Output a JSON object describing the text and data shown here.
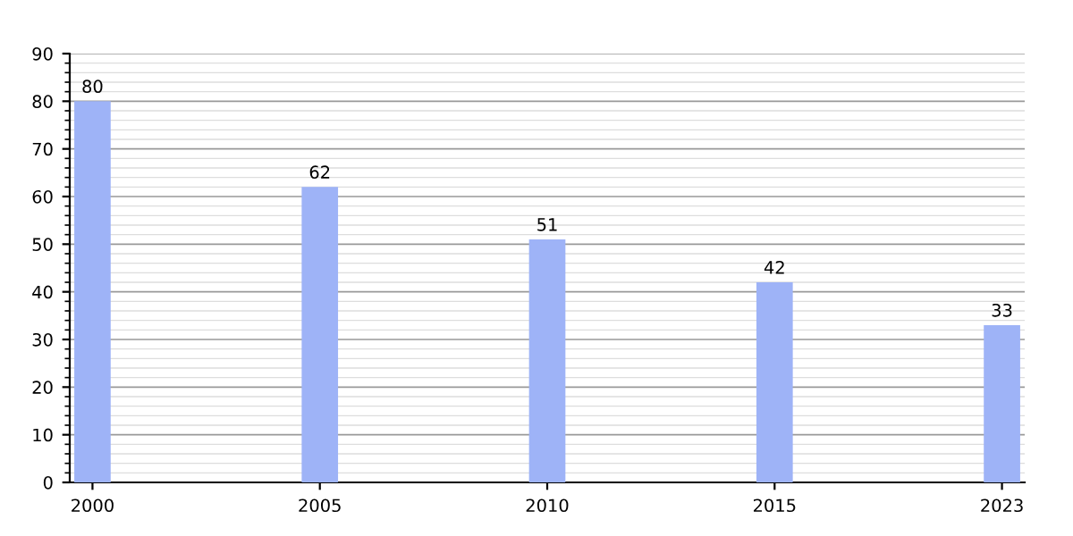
{
  "chart_data": {
    "type": "bar",
    "categories": [
      "2000",
      "2005",
      "2010",
      "2015",
      "2023"
    ],
    "values": [
      80,
      62,
      51,
      42,
      33
    ],
    "color": "#9eb3f7",
    "ylim": [
      0,
      90
    ],
    "yticks": [
      0,
      10,
      20,
      30,
      40,
      50,
      60,
      70,
      80,
      90
    ],
    "grid": "y",
    "data_labels": true
  }
}
